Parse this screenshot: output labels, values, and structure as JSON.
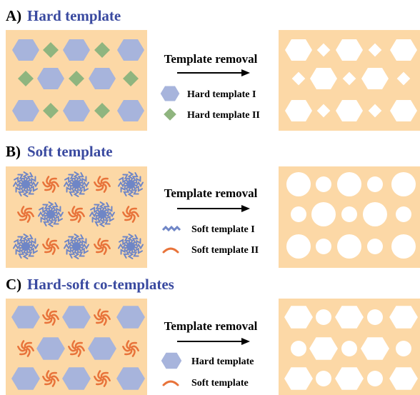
{
  "panels": [
    {
      "label": "A)",
      "title": "Hard template",
      "arrow_label": "Template removal",
      "legend": [
        "Hard template I",
        "Hard template II"
      ]
    },
    {
      "label": "B)",
      "title": "Soft template",
      "arrow_label": "Template removal",
      "legend": [
        "Soft template I",
        "Soft template II"
      ]
    },
    {
      "label": "C)",
      "title": "Hard-soft co-templates",
      "arrow_label": "Template removal",
      "legend": [
        "Hard template",
        "Soft template"
      ]
    }
  ]
}
